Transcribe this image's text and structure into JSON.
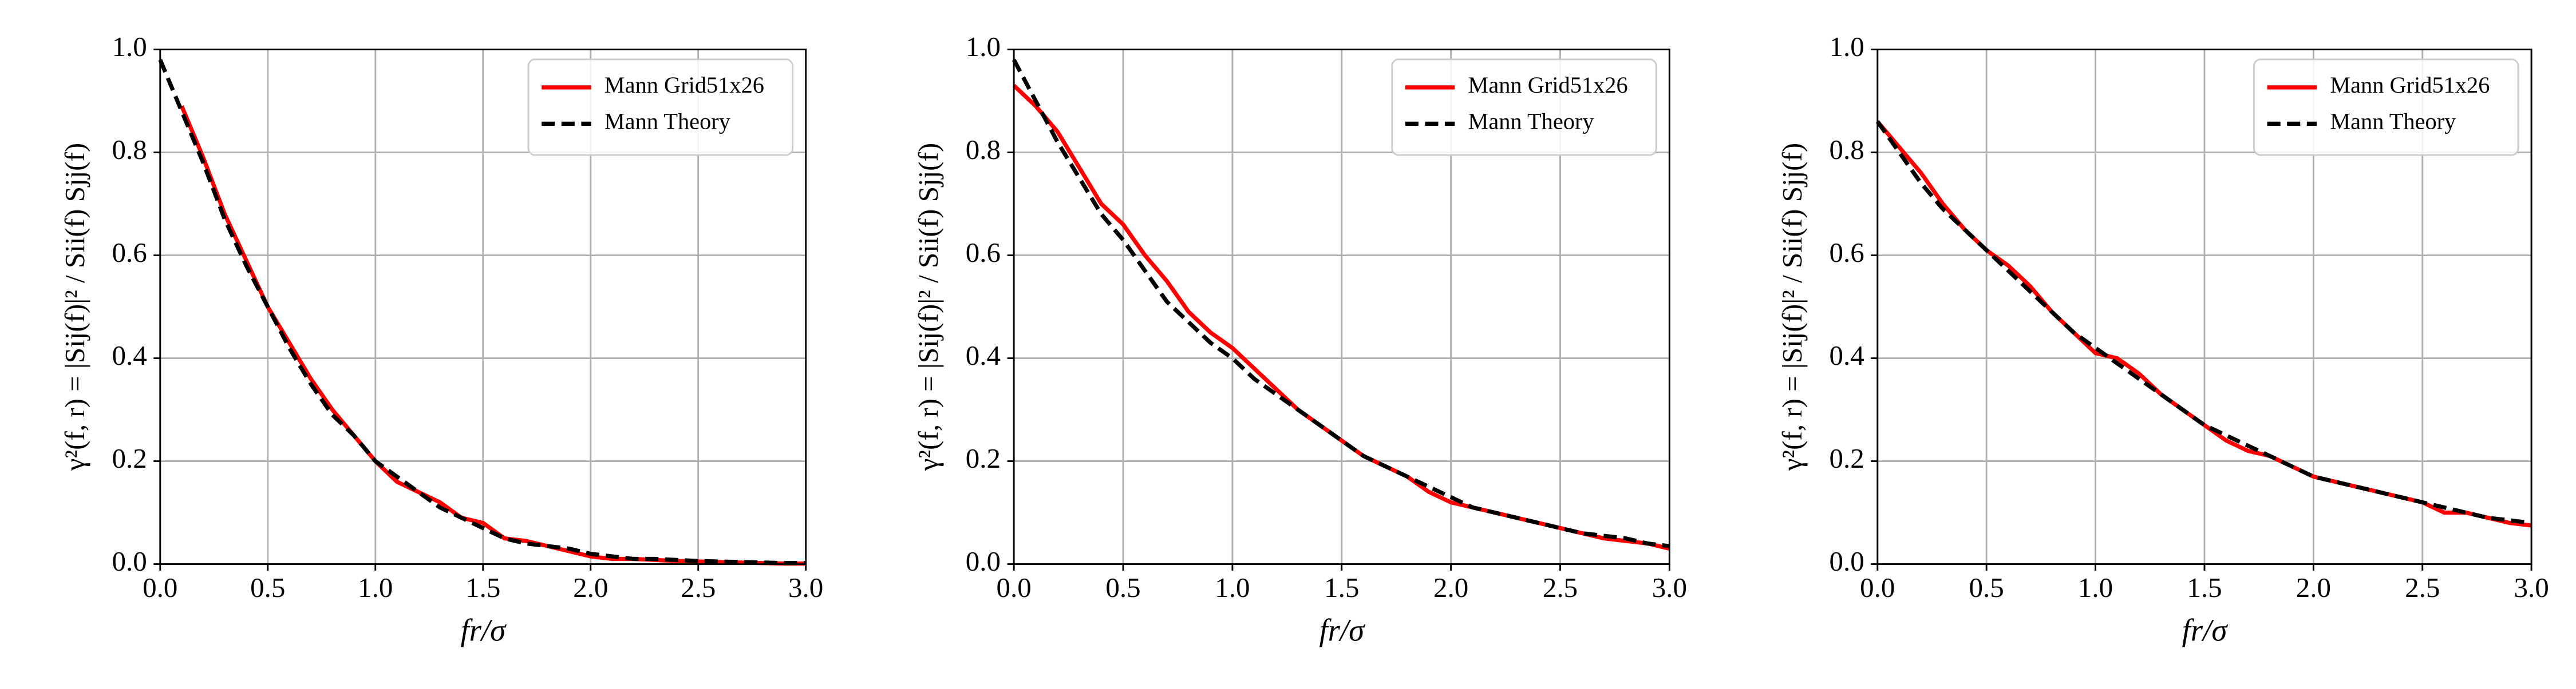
{
  "chart_data": [
    {
      "type": "line",
      "xlabel": "fr/σ",
      "ylabel": "γ²(f, r) = |Sij(f)|² / Sii(f) Sjj(f)",
      "x": [
        0,
        0.1,
        0.2,
        0.3,
        0.4,
        0.5,
        0.6,
        0.7,
        0.8,
        0.9,
        1.0,
        1.1,
        1.2,
        1.3,
        1.4,
        1.5,
        1.6,
        1.7,
        1.8,
        1.9,
        2.0,
        2.1,
        2.2,
        2.3,
        2.4,
        2.5,
        2.6,
        2.7,
        2.8,
        2.9,
        3.0
      ],
      "series": [
        {
          "name": "Mann Grid51x26",
          "color": "#ff0000",
          "dashed": false,
          "values": [
            null,
            0.89,
            0.79,
            0.68,
            0.59,
            0.5,
            0.43,
            0.36,
            0.3,
            0.25,
            0.2,
            0.16,
            0.14,
            0.12,
            0.09,
            0.08,
            0.05,
            0.045,
            0.035,
            0.025,
            0.015,
            0.01,
            0.01,
            0.008,
            0.006,
            0.005,
            0.004,
            0.003,
            0.002,
            0.001,
            0.001
          ]
        },
        {
          "name": "Mann Theory",
          "color": "#000000",
          "dashed": true,
          "values": [
            0.98,
            0.88,
            0.78,
            0.67,
            0.58,
            0.5,
            0.42,
            0.35,
            0.29,
            0.25,
            0.2,
            0.17,
            0.14,
            0.11,
            0.09,
            0.07,
            0.05,
            0.04,
            0.035,
            0.03,
            0.02,
            0.015,
            0.01,
            0.01,
            0.008,
            0.006,
            0.005,
            0.004,
            0.003,
            0.002,
            0.002
          ]
        }
      ],
      "xlim": [
        0,
        3
      ],
      "ylim": [
        0,
        1
      ],
      "xticks": [
        {
          "value": 0,
          "label": "0.0"
        },
        {
          "value": 0.5,
          "label": "0.5"
        },
        {
          "value": 1,
          "label": "1.0"
        },
        {
          "value": 1.5,
          "label": "1.5"
        },
        {
          "value": 2,
          "label": "2.0"
        },
        {
          "value": 2.5,
          "label": "2.5"
        },
        {
          "value": 3,
          "label": "3.0"
        }
      ],
      "yticks": [
        {
          "value": 0,
          "label": "0.0"
        },
        {
          "value": 0.2,
          "label": "0.2"
        },
        {
          "value": 0.4,
          "label": "0.4"
        },
        {
          "value": 0.6,
          "label": "0.6"
        },
        {
          "value": 0.8,
          "label": "0.8"
        },
        {
          "value": 1,
          "label": "1.0"
        }
      ],
      "grid": true,
      "legend": "upper right"
    },
    {
      "type": "line",
      "xlabel": "fr/σ",
      "ylabel": "γ²(f, r) = |Sij(f)|² / Sii(f) Sjj(f)",
      "x": [
        0,
        0.1,
        0.2,
        0.3,
        0.4,
        0.5,
        0.6,
        0.7,
        0.8,
        0.9,
        1.0,
        1.1,
        1.2,
        1.3,
        1.4,
        1.5,
        1.6,
        1.7,
        1.8,
        1.9,
        2.0,
        2.1,
        2.2,
        2.3,
        2.4,
        2.5,
        2.6,
        2.7,
        2.8,
        2.9,
        3.0
      ],
      "series": [
        {
          "name": "Mann Grid51x26",
          "color": "#ff0000",
          "dashed": false,
          "values": [
            0.93,
            0.89,
            0.84,
            0.77,
            0.7,
            0.66,
            0.6,
            0.55,
            0.49,
            0.45,
            0.42,
            0.38,
            0.34,
            0.3,
            0.27,
            0.24,
            0.21,
            0.19,
            0.17,
            0.14,
            0.12,
            0.11,
            0.1,
            0.09,
            0.08,
            0.07,
            0.06,
            0.05,
            0.045,
            0.04,
            0.03
          ]
        },
        {
          "name": "Mann Theory",
          "color": "#000000",
          "dashed": true,
          "values": [
            0.98,
            0.9,
            0.82,
            0.75,
            0.68,
            0.63,
            0.57,
            0.51,
            0.47,
            0.43,
            0.4,
            0.36,
            0.33,
            0.3,
            0.27,
            0.24,
            0.21,
            0.19,
            0.17,
            0.15,
            0.13,
            0.11,
            0.1,
            0.09,
            0.08,
            0.07,
            0.06,
            0.055,
            0.05,
            0.04,
            0.035
          ]
        }
      ],
      "xlim": [
        0,
        3
      ],
      "ylim": [
        0,
        1
      ],
      "xticks": [
        {
          "value": 0,
          "label": "0.0"
        },
        {
          "value": 0.5,
          "label": "0.5"
        },
        {
          "value": 1,
          "label": "1.0"
        },
        {
          "value": 1.5,
          "label": "1.5"
        },
        {
          "value": 2,
          "label": "2.0"
        },
        {
          "value": 2.5,
          "label": "2.5"
        },
        {
          "value": 3,
          "label": "3.0"
        }
      ],
      "yticks": [
        {
          "value": 0,
          "label": "0.0"
        },
        {
          "value": 0.2,
          "label": "0.2"
        },
        {
          "value": 0.4,
          "label": "0.4"
        },
        {
          "value": 0.6,
          "label": "0.6"
        },
        {
          "value": 0.8,
          "label": "0.8"
        },
        {
          "value": 1,
          "label": "1.0"
        }
      ],
      "grid": true,
      "legend": "upper right"
    },
    {
      "type": "line",
      "xlabel": "fr/σ",
      "ylabel": "γ²(f, r) = |Sij(f)|² / Sii(f) Sjj(f)",
      "x": [
        0,
        0.1,
        0.2,
        0.3,
        0.4,
        0.5,
        0.6,
        0.7,
        0.8,
        0.9,
        1.0,
        1.1,
        1.2,
        1.3,
        1.4,
        1.5,
        1.6,
        1.7,
        1.8,
        1.9,
        2.0,
        2.1,
        2.2,
        2.3,
        2.4,
        2.5,
        2.6,
        2.7,
        2.8,
        2.9,
        3.0
      ],
      "series": [
        {
          "name": "Mann Grid51x26",
          "color": "#ff0000",
          "dashed": false,
          "values": [
            0.86,
            0.81,
            0.76,
            0.7,
            0.65,
            0.61,
            0.58,
            0.54,
            0.49,
            0.45,
            0.41,
            0.4,
            0.37,
            0.33,
            0.3,
            0.27,
            0.24,
            0.22,
            0.21,
            0.19,
            0.17,
            0.16,
            0.15,
            0.14,
            0.13,
            0.12,
            0.1,
            0.1,
            0.09,
            0.08,
            0.075
          ]
        },
        {
          "name": "Mann Theory",
          "color": "#000000",
          "dashed": true,
          "values": [
            0.86,
            0.8,
            0.74,
            0.69,
            0.65,
            0.61,
            0.57,
            0.53,
            0.49,
            0.45,
            0.42,
            0.39,
            0.36,
            0.33,
            0.3,
            0.27,
            0.25,
            0.23,
            0.21,
            0.19,
            0.17,
            0.16,
            0.15,
            0.14,
            0.13,
            0.12,
            0.11,
            0.1,
            0.09,
            0.085,
            0.08
          ]
        }
      ],
      "xlim": [
        0,
        3
      ],
      "ylim": [
        0,
        1
      ],
      "xticks": [
        {
          "value": 0,
          "label": "0.0"
        },
        {
          "value": 0.5,
          "label": "0.5"
        },
        {
          "value": 1,
          "label": "1.0"
        },
        {
          "value": 1.5,
          "label": "1.5"
        },
        {
          "value": 2,
          "label": "2.0"
        },
        {
          "value": 2.5,
          "label": "2.5"
        },
        {
          "value": 3,
          "label": "3.0"
        }
      ],
      "yticks": [
        {
          "value": 0,
          "label": "0.0"
        },
        {
          "value": 0.2,
          "label": "0.2"
        },
        {
          "value": 0.4,
          "label": "0.4"
        },
        {
          "value": 0.6,
          "label": "0.6"
        },
        {
          "value": 0.8,
          "label": "0.8"
        },
        {
          "value": 1,
          "label": "1.0"
        }
      ],
      "grid": true,
      "legend": "upper right"
    }
  ]
}
